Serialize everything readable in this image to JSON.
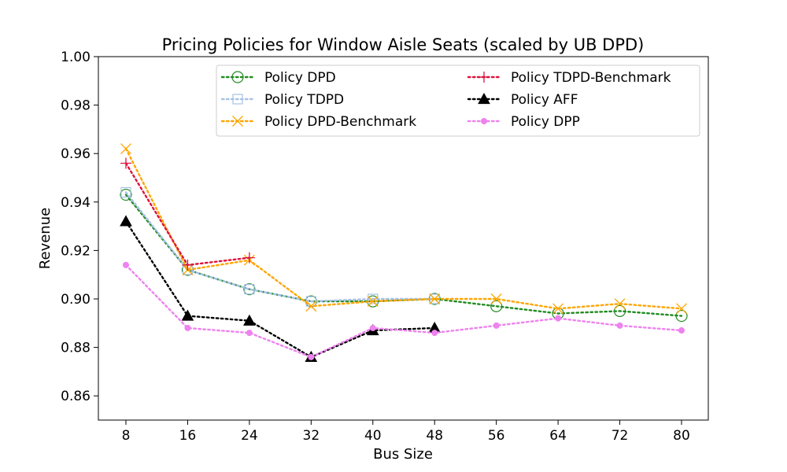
{
  "chart_data": {
    "type": "line",
    "title": "Pricing Policies for Window Aisle Seats (scaled by UB DPD)",
    "xlabel": "Bus Size",
    "ylabel": "Revenue",
    "x": [
      8,
      16,
      24,
      32,
      40,
      48,
      56,
      64,
      72,
      80
    ],
    "x_tick_labels": [
      "8",
      "16",
      "24",
      "32",
      "40",
      "48",
      "56",
      "64",
      "72",
      "80"
    ],
    "ylim": [
      0.85,
      1.0
    ],
    "y_ticks": [
      0.86,
      0.88,
      0.9,
      0.92,
      0.94,
      0.96,
      0.98,
      1.0
    ],
    "y_tick_labels": [
      "0.86",
      "0.88",
      "0.90",
      "0.92",
      "0.94",
      "0.96",
      "0.98",
      "1.00"
    ],
    "grid": false,
    "legend_position": "top-right",
    "series": [
      {
        "name": "Policy DPD",
        "color": "#228B22",
        "marker": "circle-open",
        "x": [
          8,
          16,
          24,
          32,
          40,
          48,
          56,
          64,
          72,
          80
        ],
        "values": [
          0.943,
          0.912,
          0.904,
          0.899,
          0.899,
          0.9,
          0.897,
          0.894,
          0.895,
          0.893
        ]
      },
      {
        "name": "Policy TDPD",
        "color": "#a6c1e6",
        "marker": "square-open",
        "x": [
          8,
          16,
          24,
          32,
          40,
          48
        ],
        "values": [
          0.944,
          0.912,
          0.904,
          0.899,
          0.9,
          0.9
        ]
      },
      {
        "name": "Policy DPD-Benchmark",
        "color": "#ffa500",
        "marker": "x",
        "x": [
          8,
          16,
          24,
          32,
          40,
          48,
          56,
          64,
          72,
          80
        ],
        "values": [
          0.962,
          0.912,
          0.916,
          0.897,
          0.899,
          0.9,
          0.9,
          0.896,
          0.898,
          0.896
        ]
      },
      {
        "name": "Policy TDPD-Benchmark",
        "color": "#dc143c",
        "marker": "plus",
        "x": [
          8,
          16,
          24
        ],
        "values": [
          0.956,
          0.914,
          0.917
        ]
      },
      {
        "name": "Policy AFF",
        "color": "#000000",
        "marker": "triangle-filled",
        "x": [
          8,
          16,
          24,
          32,
          40,
          48
        ],
        "values": [
          0.932,
          0.893,
          0.891,
          0.876,
          0.887,
          0.888
        ]
      },
      {
        "name": "Policy DPP",
        "color": "#ee82ee",
        "marker": "dot",
        "x": [
          8,
          16,
          24,
          32,
          40,
          48,
          56,
          64,
          72,
          80
        ],
        "values": [
          0.914,
          0.888,
          0.886,
          0.876,
          0.888,
          0.886,
          0.889,
          0.892,
          0.889,
          0.887
        ]
      }
    ]
  }
}
